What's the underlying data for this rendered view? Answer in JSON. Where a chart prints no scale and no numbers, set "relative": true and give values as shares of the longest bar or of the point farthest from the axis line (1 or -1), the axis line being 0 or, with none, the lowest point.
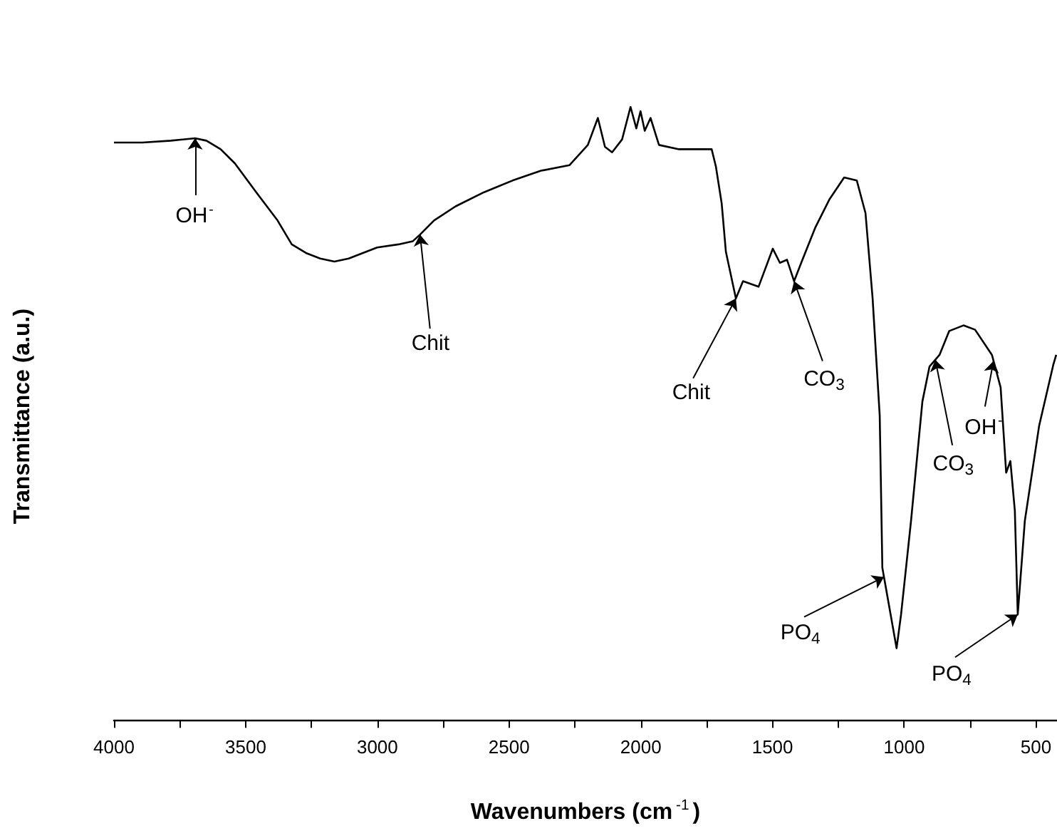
{
  "chart_data": {
    "type": "line",
    "relative": true,
    "xlabel": "Wavenumbers (cm$^{-1}$)",
    "ylabel": "Transmittance (a.u.)",
    "xlim": [
      4000,
      420
    ],
    "xticks": [
      4000,
      {
        "value": 3750,
        "label": null
      },
      3500,
      {
        "value": 3250,
        "label": null
      },
      3000,
      {
        "value": 2750,
        "label": null
      },
      2500,
      {
        "value": 2250,
        "label": null
      },
      2000,
      {
        "value": 1750,
        "label": null
      },
      1500,
      {
        "value": 1250,
        "label": null
      },
      1000,
      {
        "value": 750,
        "label": null
      },
      500
    ],
    "grid": false,
    "marker": "none",
    "line_style": "solid",
    "series": [
      {
        "color": "#000000",
        "x": [
          4000,
          3892,
          3784,
          3692,
          3649,
          3595,
          3541,
          3460,
          3379,
          3325,
          3271,
          3217,
          3163,
          3109,
          3055,
          3001,
          2920,
          2866,
          2838,
          2785,
          2703,
          2595,
          2487,
          2379,
          2271,
          2201,
          2163,
          2136,
          2109,
          2071,
          2039,
          2017,
          2001,
          1985,
          1963,
          1931,
          1855,
          1731,
          1715,
          1693,
          1677,
          1639,
          1612,
          1553,
          1499,
          1472,
          1445,
          1418,
          1391,
          1337,
          1283,
          1228,
          1180,
          1147,
          1120,
          1093,
          1083,
          1029,
          1012,
          974,
          931,
          904,
          866,
          829,
          775,
          731,
          667,
          634,
          613,
          597,
          580,
          569,
          542,
          488,
          434,
          423
        ],
        "values": [
          0.942,
          0.942,
          0.945,
          0.949,
          0.945,
          0.931,
          0.908,
          0.861,
          0.815,
          0.776,
          0.762,
          0.753,
          0.748,
          0.753,
          0.762,
          0.771,
          0.776,
          0.781,
          0.792,
          0.815,
          0.838,
          0.861,
          0.88,
          0.896,
          0.905,
          0.938,
          0.982,
          0.935,
          0.926,
          0.947,
          1.0,
          0.965,
          0.993,
          0.961,
          0.982,
          0.938,
          0.931,
          0.931,
          0.903,
          0.843,
          0.764,
          0.688,
          0.716,
          0.707,
          0.769,
          0.746,
          0.751,
          0.716,
          0.746,
          0.804,
          0.85,
          0.885,
          0.88,
          0.827,
          0.688,
          0.497,
          0.249,
          0.118,
          0.173,
          0.326,
          0.52,
          0.577,
          0.596,
          0.635,
          0.644,
          0.637,
          0.596,
          0.543,
          0.404,
          0.423,
          0.342,
          0.173,
          0.326,
          0.48,
          0.58,
          0.596
        ]
      }
    ],
    "annotations": [
      {
        "text": "OH$^{-}$",
        "x": 3692,
        "y": 0.949
      },
      {
        "text": "Chit",
        "x": 2838,
        "y": 0.792
      },
      {
        "text": "Chit",
        "x": 1639,
        "y": 0.688
      },
      {
        "text": "CO$_{3}$",
        "x": 1418,
        "y": 0.716
      },
      {
        "text": "CO$_{3}$",
        "x": 882,
        "y": 0.588
      },
      {
        "text": "OH$^{-}$",
        "x": 661,
        "y": 0.586
      },
      {
        "text": "PO$_{4}$",
        "x": 1077,
        "y": 0.234
      },
      {
        "text": "PO$_{4}$",
        "x": 569,
        "y": 0.173
      }
    ]
  }
}
